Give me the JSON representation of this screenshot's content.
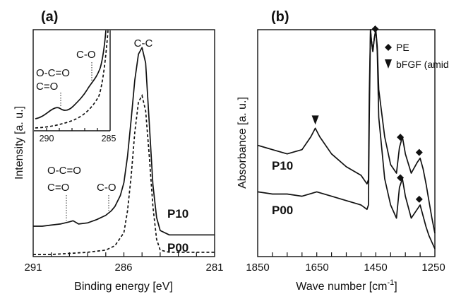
{
  "chart_data": [
    {
      "type": "line",
      "panel_label": "(a)",
      "xlabel": "Binding energy [eV]",
      "ylabel": "Intensity [a. u.]",
      "xlim": [
        291,
        281
      ],
      "x_reversed": true,
      "xticks": [
        "291",
        "286",
        "281"
      ],
      "grid": false,
      "series": [
        {
          "name": "P10",
          "style": "solid",
          "x": [
            291,
            290.5,
            290,
            289.5,
            289,
            288.8,
            288.5,
            288,
            287.5,
            287,
            286.7,
            286.5,
            286.2,
            286,
            285.8,
            285.6,
            285.4,
            285.2,
            285,
            284.8,
            284.6,
            284.4,
            284.2,
            284,
            283.5,
            283,
            282,
            281
          ],
          "y": [
            0.13,
            0.13,
            0.135,
            0.14,
            0.15,
            0.155,
            0.14,
            0.145,
            0.16,
            0.18,
            0.2,
            0.22,
            0.27,
            0.33,
            0.45,
            0.62,
            0.8,
            0.92,
            0.95,
            0.88,
            0.6,
            0.32,
            0.17,
            0.11,
            0.09,
            0.09,
            0.09,
            0.09
          ]
        },
        {
          "name": "P00",
          "style": "dashed",
          "x": [
            291,
            290,
            289,
            288,
            287,
            286.5,
            286,
            285.8,
            285.6,
            285.4,
            285.2,
            285,
            284.8,
            284.6,
            284.4,
            284.2,
            284,
            283.5,
            283,
            282,
            281
          ],
          "y": [
            0.0,
            0.0,
            0.005,
            0.01,
            0.02,
            0.04,
            0.1,
            0.2,
            0.36,
            0.56,
            0.7,
            0.73,
            0.66,
            0.45,
            0.22,
            0.07,
            0.02,
            0.01,
            0.01,
            0.01,
            0.01
          ]
        }
      ],
      "annotations": [
        {
          "text": "C-C",
          "x": 285
        },
        {
          "text_lines": [
            "O-C=O",
            "C=O"
          ],
          "x": 288.8
        },
        {
          "text": "C-O",
          "x": 286.6
        }
      ],
      "inset": {
        "xlim": [
          291,
          285
        ],
        "xticks": [
          "290",
          "285"
        ],
        "annotations": [
          {
            "text_lines": [
              "O-C=O",
              "C=O"
            ],
            "x": 288.8
          },
          {
            "text": "C-O",
            "x": 286.6
          }
        ]
      }
    },
    {
      "type": "line",
      "panel_label": "(b)",
      "xlabel": "Wave number [cm",
      "xlabel_sup": "-1",
      "xlabel_tail": "]",
      "ylabel": "Absorbance [a. u.]",
      "xlim": [
        1850,
        1250
      ],
      "x_reversed": true,
      "xticks": [
        "1850",
        "1650",
        "1450",
        "1250"
      ],
      "grid": false,
      "legend": {
        "placement": "top-right",
        "entries": [
          {
            "marker": "diamond",
            "label": "PE"
          },
          {
            "marker": "triangle-down",
            "label": "bFGF (amide)"
          }
        ]
      },
      "series": [
        {
          "name": "P10",
          "x": [
            1850,
            1800,
            1750,
            1700,
            1670,
            1655,
            1640,
            1600,
            1550,
            1500,
            1480,
            1475,
            1472,
            1468,
            1465,
            1460,
            1455,
            1450,
            1445,
            1440,
            1420,
            1400,
            1380,
            1370,
            1360,
            1350,
            1330,
            1310,
            1300,
            1290,
            1280,
            1270,
            1260,
            1250
          ],
          "y": [
            0.46,
            0.44,
            0.42,
            0.44,
            0.5,
            0.54,
            0.5,
            0.42,
            0.36,
            0.32,
            0.28,
            0.3,
            0.7,
            1.0,
            0.95,
            0.9,
            0.96,
            1.0,
            0.92,
            0.72,
            0.5,
            0.37,
            0.33,
            0.45,
            0.5,
            0.42,
            0.33,
            0.38,
            0.4,
            0.35,
            0.28,
            0.2,
            0.12,
            0.05
          ]
        },
        {
          "name": "P00",
          "x": [
            1850,
            1800,
            1750,
            1700,
            1650,
            1600,
            1550,
            1500,
            1480,
            1475,
            1472,
            1468,
            1465,
            1460,
            1455,
            1450,
            1445,
            1440,
            1420,
            1400,
            1380,
            1370,
            1360,
            1350,
            1330,
            1310,
            1300,
            1290,
            1280,
            1270,
            1260,
            1250
          ],
          "y": [
            0.26,
            0.25,
            0.25,
            0.24,
            0.26,
            0.24,
            0.22,
            0.2,
            0.18,
            0.2,
            0.6,
            1.0,
            0.95,
            0.9,
            0.96,
            1.0,
            0.9,
            0.6,
            0.32,
            0.2,
            0.14,
            0.28,
            0.32,
            0.24,
            0.14,
            0.18,
            0.2,
            0.15,
            0.1,
            0.06,
            0.03,
            0.0
          ]
        }
      ],
      "markers": [
        {
          "marker": "diamond",
          "x": 1452,
          "series": "top"
        },
        {
          "marker": "triangle-down",
          "x": 1655,
          "series": "P10"
        },
        {
          "marker": "diamond",
          "x": 1367,
          "series": "P10"
        },
        {
          "marker": "diamond",
          "x": 1303,
          "series": "P10"
        },
        {
          "marker": "diamond",
          "x": 1367,
          "series": "P00"
        },
        {
          "marker": "diamond",
          "x": 1303,
          "series": "P00"
        }
      ]
    }
  ]
}
